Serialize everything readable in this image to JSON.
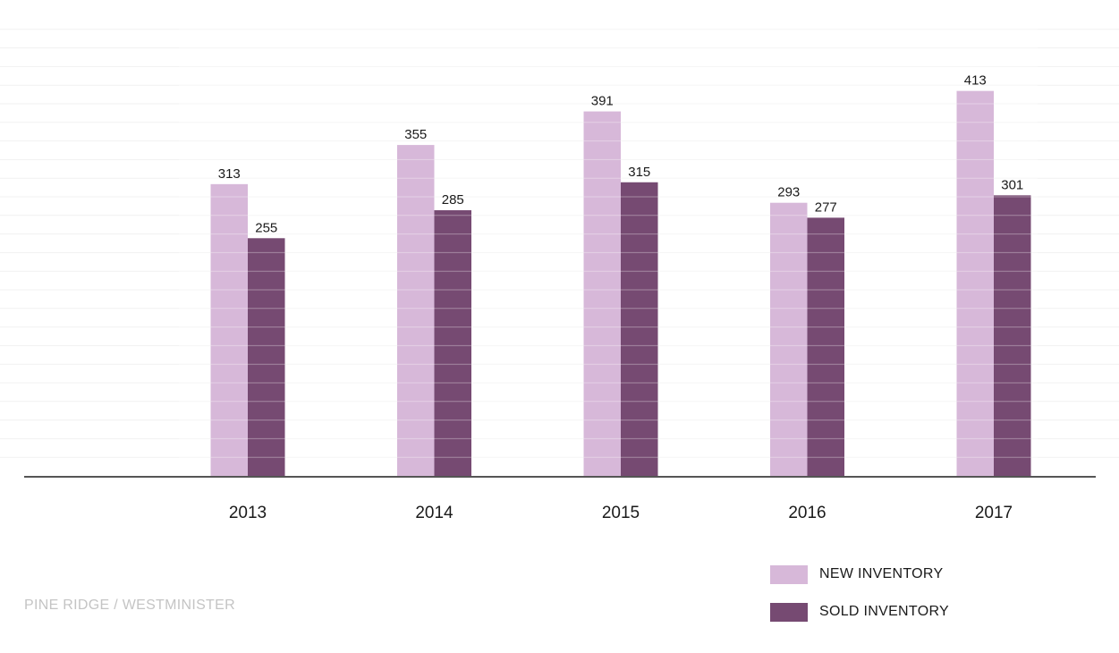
{
  "chart_data": {
    "type": "bar",
    "categories": [
      "2013",
      "2014",
      "2015",
      "2016",
      "2017"
    ],
    "series": [
      {
        "name": "NEW INVENTORY",
        "values": [
          313,
          355,
          391,
          293,
          413
        ],
        "color": "#d7b8d9"
      },
      {
        "name": "SOLD INVENTORY",
        "values": [
          255,
          285,
          315,
          277,
          301
        ],
        "color": "#764a72"
      }
    ],
    "title": "",
    "xlabel": "",
    "ylabel": "",
    "ylim": [
      0,
      500
    ],
    "grid": true,
    "legend_position": "bottom-right"
  },
  "footer": {
    "text": "PINE RIDGE / WESTMINISTER"
  }
}
